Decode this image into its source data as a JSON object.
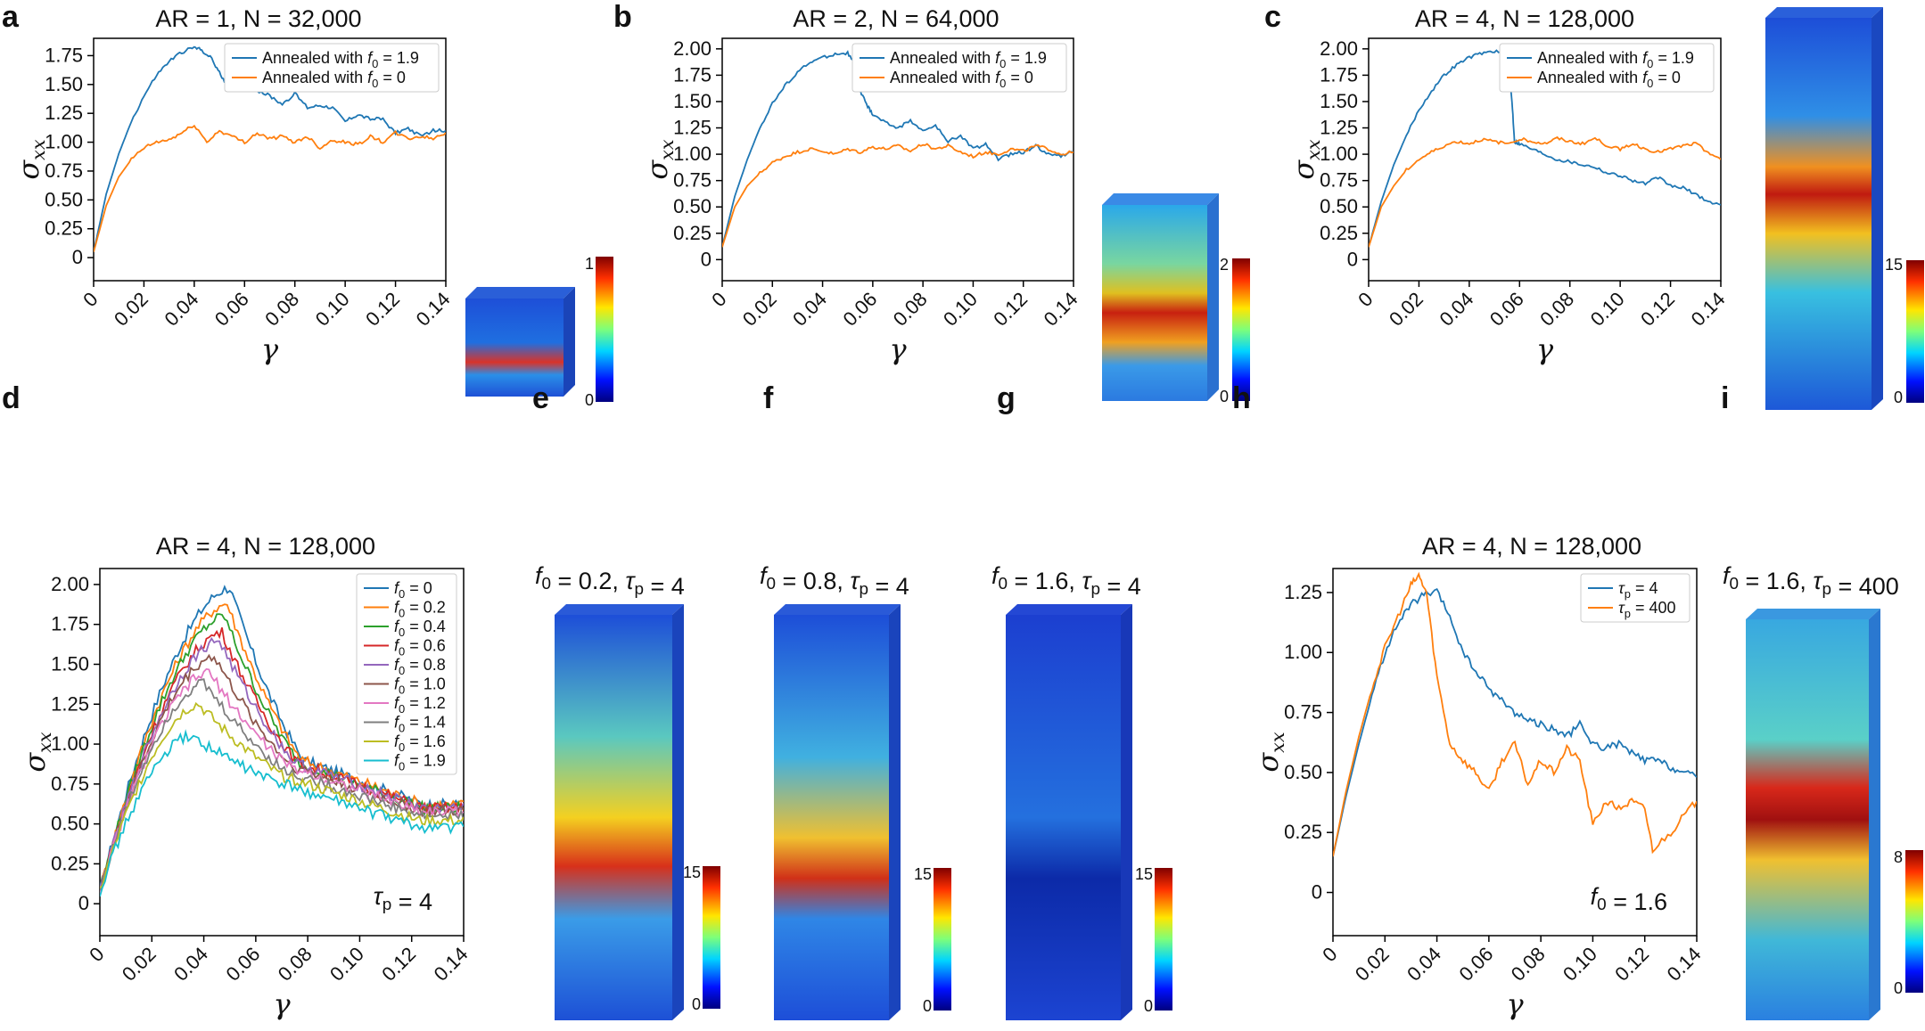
{
  "panels": {
    "a": {
      "letter": "a",
      "title": "AR = 1, N = 32,000"
    },
    "b": {
      "letter": "b",
      "title": "AR = 2, N = 64,000"
    },
    "c": {
      "letter": "c",
      "title": "AR = 4, N = 128,000"
    },
    "d": {
      "letter": "d",
      "title": "AR = 4, N = 128,000",
      "annotation": "τp = 4"
    },
    "e": {
      "letter": "e",
      "title": "f0 = 0.2, τp = 4",
      "colorbar": {
        "min": "0",
        "max": "15"
      }
    },
    "f": {
      "letter": "f",
      "title": "f0 = 0.8, τp = 4",
      "colorbar": {
        "min": "0",
        "max": "15"
      }
    },
    "g": {
      "letter": "g",
      "title": "f0 = 1.6, τp = 4",
      "colorbar": {
        "min": "0",
        "max": "15"
      }
    },
    "h": {
      "letter": "h",
      "title": "AR = 4, N = 128,000",
      "annotation": "f0 = 1.6"
    },
    "i": {
      "letter": "i",
      "title": "f0 = 1.6, τp = 400",
      "colorbar": {
        "min": "0",
        "max": "8"
      }
    }
  },
  "inset_colorbars": {
    "a": {
      "min": "0",
      "max": "1"
    },
    "b": {
      "min": "0",
      "max": "2"
    },
    "c": {
      "min": "0",
      "max": "15"
    }
  },
  "colors": {
    "blue": "#1f77b4",
    "orange": "#ff7f0e"
  },
  "chart_data": [
    {
      "panel": "a",
      "type": "line",
      "title": "AR = 1, N = 32,000",
      "xlabel": "γ",
      "ylabel": "σxx",
      "xlim": [
        0,
        0.14
      ],
      "ylim": [
        -0.2,
        1.9
      ],
      "xticks": [
        "0",
        "0.02",
        "0.04",
        "0.06",
        "0.08",
        "0.10",
        "0.12",
        "0.14"
      ],
      "yticks": [
        "0",
        "0.25",
        "0.50",
        "0.75",
        "1.00",
        "1.25",
        "1.50",
        "1.75"
      ],
      "legend_loc": "top-right",
      "series": [
        {
          "name": "Annealed with f0 = 1.9",
          "color": "#1f77b4",
          "x": [
            0,
            0.005,
            0.01,
            0.015,
            0.02,
            0.025,
            0.03,
            0.035,
            0.04,
            0.043,
            0.047,
            0.05,
            0.053,
            0.057,
            0.06,
            0.065,
            0.07,
            0.075,
            0.08,
            0.085,
            0.09,
            0.095,
            0.1,
            0.105,
            0.11,
            0.115,
            0.12,
            0.125,
            0.13,
            0.135,
            0.14
          ],
          "y": [
            0.05,
            0.55,
            0.9,
            1.18,
            1.4,
            1.58,
            1.7,
            1.78,
            1.82,
            1.8,
            1.72,
            1.6,
            1.5,
            1.55,
            1.47,
            1.45,
            1.4,
            1.33,
            1.42,
            1.3,
            1.32,
            1.3,
            1.18,
            1.24,
            1.2,
            1.2,
            1.08,
            1.12,
            1.05,
            1.1,
            1.1
          ]
        },
        {
          "name": "Annealed with f0 = 0",
          "color": "#ff7f0e",
          "x": [
            0,
            0.005,
            0.01,
            0.015,
            0.02,
            0.025,
            0.03,
            0.035,
            0.04,
            0.045,
            0.05,
            0.055,
            0.06,
            0.065,
            0.07,
            0.075,
            0.08,
            0.085,
            0.09,
            0.095,
            0.1,
            0.105,
            0.11,
            0.115,
            0.12,
            0.125,
            0.13,
            0.135,
            0.14
          ],
          "y": [
            0.05,
            0.45,
            0.7,
            0.85,
            0.95,
            1.0,
            1.02,
            1.08,
            1.15,
            1.0,
            1.1,
            1.05,
            1.0,
            1.08,
            1.03,
            1.05,
            1.0,
            1.05,
            0.95,
            1.02,
            1.0,
            0.98,
            1.05,
            1.0,
            1.08,
            1.03,
            1.05,
            1.03,
            1.08
          ]
        }
      ]
    },
    {
      "panel": "b",
      "type": "line",
      "title": "AR = 2, N = 64,000",
      "xlabel": "γ",
      "ylabel": "σxx",
      "xlim": [
        0,
        0.14
      ],
      "ylim": [
        -0.2,
        2.1
      ],
      "xticks": [
        "0",
        "0.02",
        "0.04",
        "0.06",
        "0.08",
        "0.10",
        "0.12",
        "0.14"
      ],
      "yticks": [
        "0",
        "0.25",
        "0.50",
        "0.75",
        "1.00",
        "1.25",
        "1.50",
        "1.75",
        "2.00"
      ],
      "legend_loc": "top-right",
      "series": [
        {
          "name": "Annealed with f0 = 1.9",
          "color": "#1f77b4",
          "x": [
            0,
            0.005,
            0.01,
            0.015,
            0.02,
            0.025,
            0.03,
            0.035,
            0.04,
            0.045,
            0.05,
            0.053,
            0.055,
            0.058,
            0.06,
            0.065,
            0.07,
            0.075,
            0.08,
            0.085,
            0.09,
            0.095,
            0.1,
            0.105,
            0.11,
            0.115,
            0.12,
            0.125,
            0.13,
            0.135,
            0.14
          ],
          "y": [
            0.12,
            0.6,
            0.95,
            1.25,
            1.48,
            1.65,
            1.78,
            1.87,
            1.92,
            1.95,
            1.96,
            1.85,
            1.6,
            1.45,
            1.38,
            1.3,
            1.25,
            1.32,
            1.22,
            1.27,
            1.12,
            1.18,
            1.05,
            1.1,
            0.95,
            1.0,
            1.02,
            1.08,
            1.0,
            0.98,
            1.02
          ]
        },
        {
          "name": "Annealed with f0 = 0",
          "color": "#ff7f0e",
          "x": [
            0,
            0.005,
            0.01,
            0.015,
            0.02,
            0.025,
            0.03,
            0.035,
            0.04,
            0.045,
            0.05,
            0.055,
            0.06,
            0.065,
            0.07,
            0.075,
            0.08,
            0.085,
            0.09,
            0.095,
            0.1,
            0.105,
            0.11,
            0.115,
            0.12,
            0.125,
            0.13,
            0.135,
            0.14
          ],
          "y": [
            0.12,
            0.5,
            0.7,
            0.82,
            0.92,
            0.98,
            1.02,
            1.05,
            1.03,
            1.0,
            1.05,
            1.02,
            1.07,
            1.05,
            1.08,
            1.03,
            1.1,
            1.05,
            1.08,
            1.02,
            0.98,
            1.02,
            1.0,
            1.05,
            1.03,
            1.08,
            1.05,
            1.0,
            1.02
          ]
        }
      ]
    },
    {
      "panel": "c",
      "type": "line",
      "title": "AR = 4, N = 128,000",
      "xlabel": "γ",
      "ylabel": "σxx",
      "xlim": [
        0,
        0.14
      ],
      "ylim": [
        -0.2,
        2.1
      ],
      "xticks": [
        "0",
        "0.02",
        "0.04",
        "0.06",
        "0.08",
        "0.10",
        "0.12",
        "0.14"
      ],
      "yticks": [
        "0",
        "0.25",
        "0.50",
        "0.75",
        "1.00",
        "1.25",
        "1.50",
        "1.75",
        "2.00"
      ],
      "legend_loc": "top-right",
      "series": [
        {
          "name": "Annealed with f0 = 1.9",
          "color": "#1f77b4",
          "x": [
            0,
            0.005,
            0.01,
            0.015,
            0.02,
            0.025,
            0.03,
            0.035,
            0.04,
            0.045,
            0.05,
            0.055,
            0.057,
            0.058,
            0.06,
            0.065,
            0.07,
            0.075,
            0.08,
            0.085,
            0.09,
            0.095,
            0.1,
            0.105,
            0.11,
            0.115,
            0.12,
            0.125,
            0.13,
            0.135,
            0.14
          ],
          "y": [
            0.12,
            0.55,
            0.9,
            1.18,
            1.42,
            1.6,
            1.75,
            1.85,
            1.92,
            1.96,
            1.98,
            1.95,
            1.5,
            1.12,
            1.1,
            1.05,
            1.0,
            0.95,
            0.93,
            0.9,
            0.88,
            0.82,
            0.8,
            0.75,
            0.72,
            0.78,
            0.7,
            0.68,
            0.62,
            0.55,
            0.52
          ]
        },
        {
          "name": "Annealed with f0 = 0",
          "color": "#ff7f0e",
          "x": [
            0,
            0.005,
            0.01,
            0.015,
            0.02,
            0.025,
            0.03,
            0.035,
            0.04,
            0.045,
            0.05,
            0.055,
            0.06,
            0.065,
            0.07,
            0.075,
            0.08,
            0.085,
            0.09,
            0.095,
            0.1,
            0.105,
            0.11,
            0.115,
            0.12,
            0.125,
            0.13,
            0.135,
            0.14
          ],
          "y": [
            0.12,
            0.5,
            0.7,
            0.85,
            0.95,
            1.02,
            1.08,
            1.12,
            1.1,
            1.14,
            1.12,
            1.1,
            1.15,
            1.12,
            1.1,
            1.15,
            1.12,
            1.1,
            1.15,
            1.08,
            1.05,
            1.1,
            1.05,
            1.02,
            1.05,
            1.08,
            1.1,
            1.02,
            0.95
          ]
        }
      ]
    },
    {
      "panel": "d",
      "type": "line",
      "title": "AR = 4, N = 128,000",
      "xlabel": "γ",
      "ylabel": "σxx",
      "xlim": [
        0,
        0.14
      ],
      "ylim": [
        -0.2,
        2.1
      ],
      "xticks": [
        "0",
        "0.02",
        "0.04",
        "0.06",
        "0.08",
        "0.10",
        "0.12",
        "0.14"
      ],
      "yticks": [
        "0",
        "0.25",
        "0.50",
        "0.75",
        "1.00",
        "1.25",
        "1.50",
        "1.75",
        "2.00"
      ],
      "legend_loc": "top-right",
      "series": [
        {
          "name": "f0 = 0",
          "color": "#1f77b4",
          "peak_x": 0.05,
          "peak": 1.98,
          "plateau": 0.62
        },
        {
          "name": "f0 = 0.2",
          "color": "#ff7f0e",
          "peak_x": 0.049,
          "peak": 1.88,
          "plateau": 0.62
        },
        {
          "name": "f0 = 0.4",
          "color": "#2ca02c",
          "peak_x": 0.048,
          "peak": 1.8,
          "plateau": 0.6
        },
        {
          "name": "f0 = 0.6",
          "color": "#d62728",
          "peak_x": 0.047,
          "peak": 1.7,
          "plateau": 0.6
        },
        {
          "name": "f0 = 0.8",
          "color": "#9467bd",
          "peak_x": 0.046,
          "peak": 1.65,
          "plateau": 0.6
        },
        {
          "name": "f0 = 1.0",
          "color": "#8c564b",
          "peak_x": 0.044,
          "peak": 1.55,
          "plateau": 0.58
        },
        {
          "name": "f0 = 1.2",
          "color": "#e377c2",
          "peak_x": 0.042,
          "peak": 1.45,
          "plateau": 0.58
        },
        {
          "name": "f0 = 1.4",
          "color": "#7f7f7f",
          "peak_x": 0.04,
          "peak": 1.38,
          "plateau": 0.55
        },
        {
          "name": "f0 = 1.6",
          "color": "#bcbd22",
          "peak_x": 0.038,
          "peak": 1.25,
          "plateau": 0.52
        },
        {
          "name": "f0 = 1.9",
          "color": "#17becf",
          "peak_x": 0.035,
          "peak": 1.05,
          "plateau": 0.48
        }
      ]
    },
    {
      "panel": "h",
      "type": "line",
      "title": "AR = 4, N = 128,000",
      "xlabel": "γ",
      "ylabel": "σxx",
      "xlim": [
        0,
        0.14
      ],
      "ylim": [
        -0.18,
        1.35
      ],
      "xticks": [
        "0",
        "0.02",
        "0.04",
        "0.06",
        "0.08",
        "0.10",
        "0.12",
        "0.14"
      ],
      "yticks": [
        "0",
        "0.25",
        "0.50",
        "0.75",
        "1.00",
        "1.25"
      ],
      "legend_loc": "top-right",
      "series": [
        {
          "name": "τp = 4",
          "color": "#1f77b4",
          "x": [
            0,
            0.005,
            0.01,
            0.015,
            0.02,
            0.025,
            0.03,
            0.035,
            0.04,
            0.045,
            0.05,
            0.055,
            0.06,
            0.065,
            0.07,
            0.075,
            0.08,
            0.085,
            0.09,
            0.095,
            0.1,
            0.105,
            0.11,
            0.115,
            0.12,
            0.125,
            0.13,
            0.135,
            0.14
          ],
          "y": [
            0.15,
            0.4,
            0.62,
            0.82,
            1.0,
            1.12,
            1.2,
            1.24,
            1.25,
            1.15,
            1.0,
            0.92,
            0.85,
            0.8,
            0.75,
            0.72,
            0.7,
            0.68,
            0.65,
            0.7,
            0.62,
            0.6,
            0.62,
            0.58,
            0.55,
            0.55,
            0.52,
            0.5,
            0.48
          ]
        },
        {
          "name": "τp = 400",
          "color": "#ff7f0e",
          "x": [
            0,
            0.005,
            0.01,
            0.015,
            0.02,
            0.025,
            0.03,
            0.033,
            0.036,
            0.04,
            0.045,
            0.05,
            0.055,
            0.06,
            0.065,
            0.07,
            0.075,
            0.08,
            0.085,
            0.09,
            0.095,
            0.1,
            0.105,
            0.11,
            0.115,
            0.12,
            0.123,
            0.13,
            0.135,
            0.14
          ],
          "y": [
            0.15,
            0.42,
            0.65,
            0.85,
            1.02,
            1.15,
            1.28,
            1.32,
            1.25,
            0.9,
            0.62,
            0.55,
            0.5,
            0.42,
            0.55,
            0.62,
            0.45,
            0.55,
            0.5,
            0.6,
            0.55,
            0.28,
            0.38,
            0.35,
            0.38,
            0.35,
            0.18,
            0.25,
            0.32,
            0.38
          ]
        }
      ]
    }
  ]
}
